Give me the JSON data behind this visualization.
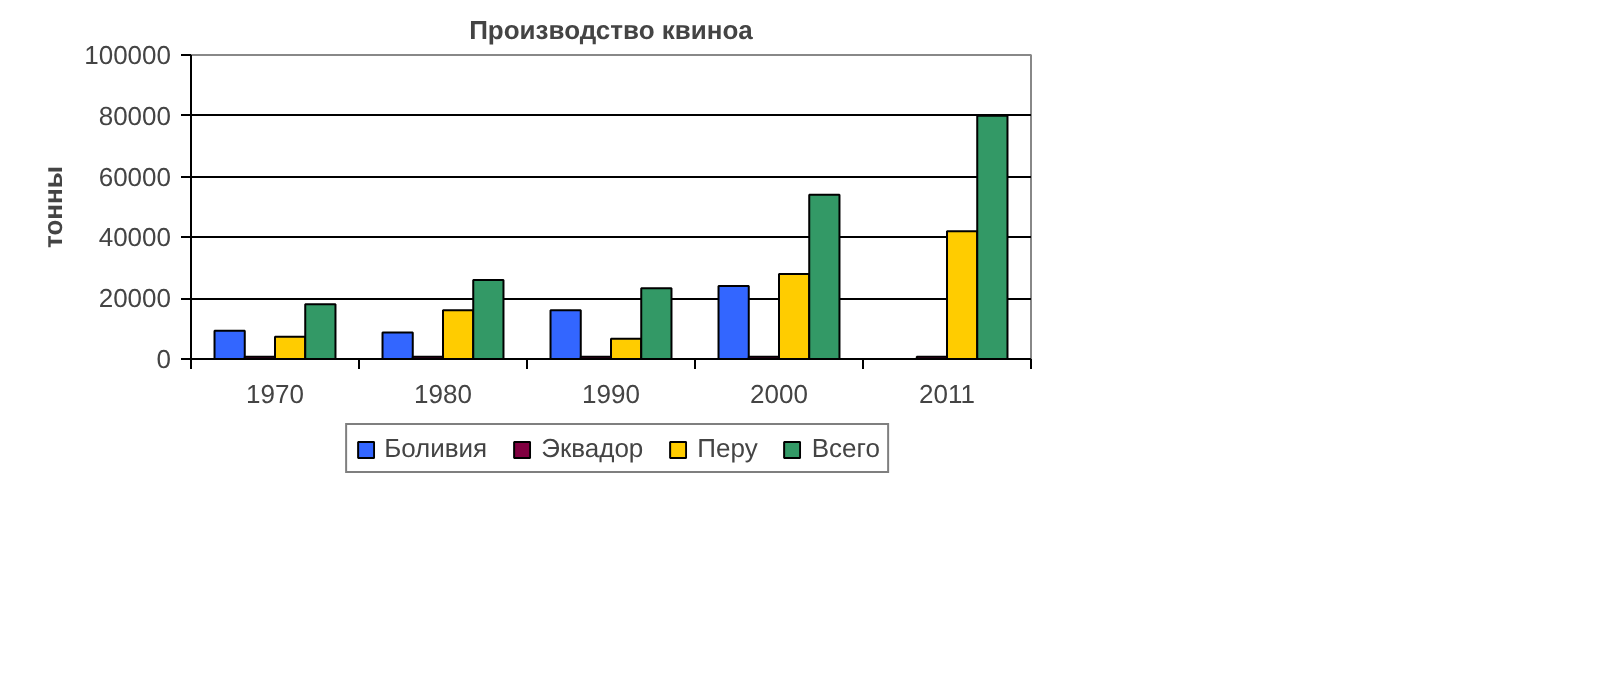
{
  "chart_data": {
    "type": "bar",
    "title": "Производство квиноа",
    "ylabel": "тонны",
    "categories": [
      "1970",
      "1980",
      "1990",
      "2000",
      "2011"
    ],
    "series": [
      {
        "name": "Боливия",
        "color": "#3366ff",
        "values": [
          9300,
          8700,
          16000,
          24000,
          null
        ]
      },
      {
        "name": "Эквадор",
        "color": "#800040",
        "values": [
          700,
          700,
          700,
          700,
          700
        ]
      },
      {
        "name": "Перу",
        "color": "#ffcc00",
        "values": [
          7300,
          16000,
          6700,
          28000,
          42000
        ]
      },
      {
        "name": "Всего",
        "color": "#339966",
        "values": [
          18000,
          26000,
          23300,
          54000,
          80000
        ]
      }
    ],
    "ylim": [
      0,
      100000
    ],
    "yticks": [
      0,
      20000,
      40000,
      60000,
      80000,
      100000
    ],
    "grid": "y",
    "legend": "bottom"
  }
}
